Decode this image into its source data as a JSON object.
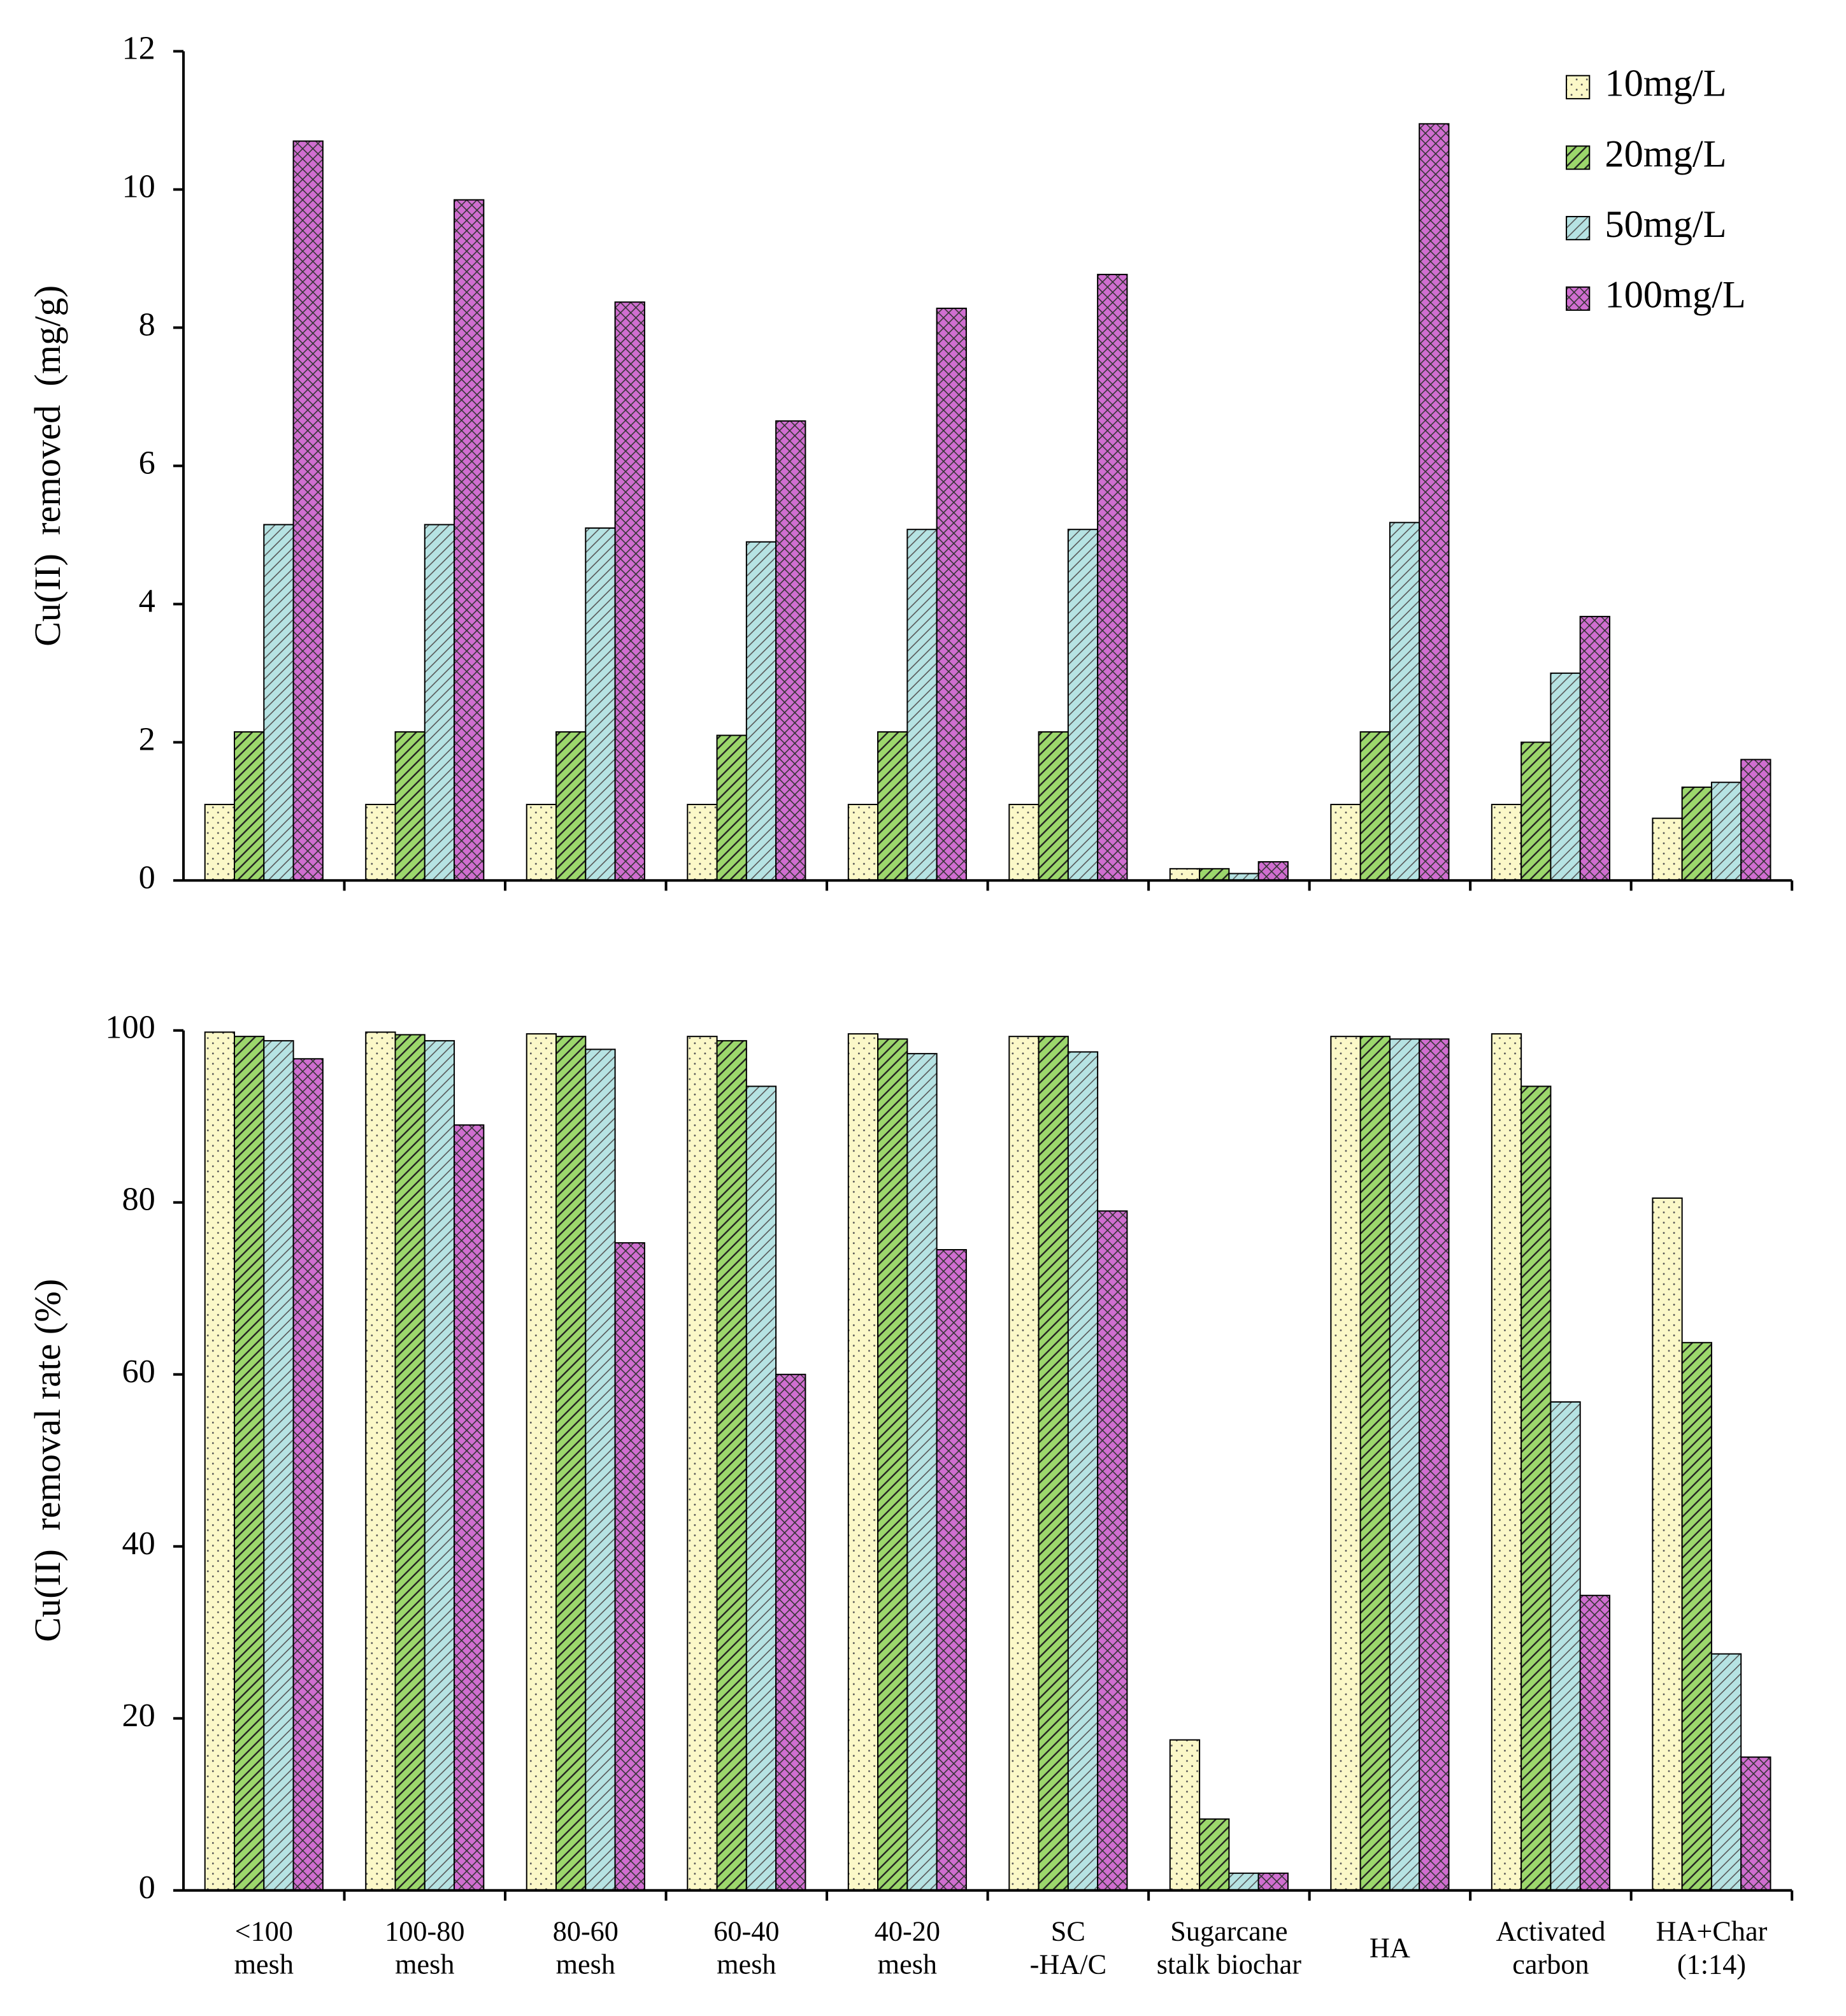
{
  "chart_data": [
    {
      "type": "bar",
      "ylabel": "Cu(II)  removed  (mg/g)",
      "ylim": [
        0,
        12
      ],
      "yticks": [
        0,
        2,
        4,
        6,
        8,
        10,
        12
      ],
      "legend": "upper right",
      "series": [
        {
          "name": "10mg/L",
          "color": "#fbf8c8",
          "values": [
            1.1,
            1.1,
            1.1,
            1.1,
            1.1,
            1.1,
            0.17,
            1.1,
            1.1,
            0.9
          ]
        },
        {
          "name": "20mg/L",
          "color": "#9cd76c",
          "values": [
            2.15,
            2.15,
            2.15,
            2.1,
            2.15,
            2.15,
            0.17,
            2.15,
            2.0,
            1.35
          ]
        },
        {
          "name": "50mg/L",
          "color": "#b6e3e3",
          "values": [
            5.15,
            5.15,
            5.1,
            4.9,
            5.08,
            5.08,
            0.1,
            5.18,
            3.0,
            1.42
          ]
        },
        {
          "name": "100mg/L",
          "color": "#d06ed0",
          "values": [
            10.7,
            9.85,
            8.37,
            6.65,
            8.28,
            8.77,
            0.27,
            10.95,
            3.82,
            1.75
          ]
        }
      ]
    },
    {
      "type": "bar",
      "ylabel": "Cu(II)  removal rate (%)",
      "ylim": [
        0,
        100
      ],
      "yticks": [
        0,
        20,
        40,
        60,
        80,
        100
      ],
      "categories": [
        [
          "<100",
          "mesh"
        ],
        [
          "100-80",
          "mesh"
        ],
        [
          "80-60",
          "mesh"
        ],
        [
          "60-40",
          "mesh"
        ],
        [
          "40-20",
          "mesh"
        ],
        [
          "SC",
          "-HA/C"
        ],
        [
          "Sugarcane",
          "stalk biochar"
        ],
        [
          "HA"
        ],
        [
          "Activated",
          "carbon"
        ],
        [
          "HA+Char",
          "(1:14)"
        ]
      ],
      "series": [
        {
          "color": "#fbf8c8",
          "values": [
            99.8,
            99.8,
            99.6,
            99.3,
            99.6,
            99.3,
            17.5,
            99.3,
            99.6,
            80.5
          ]
        },
        {
          "color": "#9cd76c",
          "values": [
            99.3,
            99.5,
            99.3,
            98.8,
            99.0,
            99.3,
            8.3,
            99.3,
            93.5,
            63.7
          ]
        },
        {
          "color": "#b6e3e3",
          "values": [
            98.8,
            98.8,
            97.8,
            93.5,
            97.3,
            97.5,
            2.0,
            99.0,
            56.8,
            27.5
          ]
        },
        {
          "color": "#d06ed0",
          "values": [
            96.7,
            89.0,
            75.3,
            60.0,
            74.5,
            79.0,
            2.0,
            99.0,
            34.3,
            15.5
          ]
        }
      ]
    }
  ]
}
